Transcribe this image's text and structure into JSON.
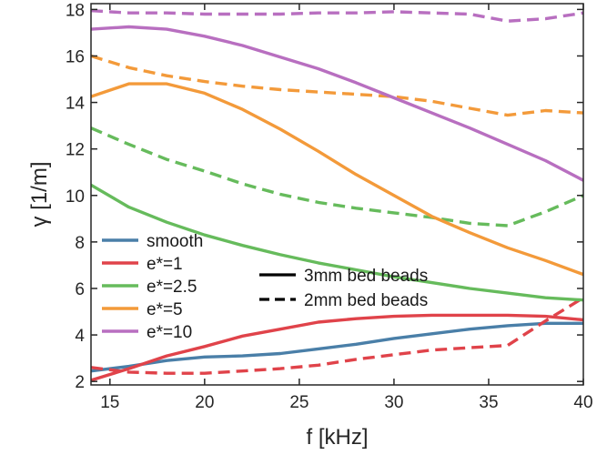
{
  "chart_data": {
    "type": "line",
    "xlabel": "f [kHz]",
    "ylabel": "γ [1/m]",
    "xlim": [
      14,
      40
    ],
    "ylim": [
      1.85,
      18.25
    ],
    "xticks": [
      15,
      20,
      25,
      30,
      35,
      40
    ],
    "yticks": [
      2,
      4,
      6,
      8,
      10,
      12,
      14,
      16,
      18
    ],
    "grid": false,
    "color_legend_position": "bottom-left",
    "style_legend_position": "bottom-center",
    "color_legend": [
      {
        "label": "smooth",
        "color": "#4a7fa8"
      },
      {
        "label": "e*=1",
        "color": "#e0434a"
      },
      {
        "label": "e*=2.5",
        "color": "#66bb5c"
      },
      {
        "label": "e*=5",
        "color": "#f39a3a"
      },
      {
        "label": "e*=10",
        "color": "#b86fc0"
      }
    ],
    "style_legend": [
      {
        "label": "3mm bed beads",
        "dash": "solid"
      },
      {
        "label": "2mm bed beads",
        "dash": "dashed"
      }
    ],
    "series": [
      {
        "group": "smooth",
        "style": "solid",
        "color": "#4a7fa8",
        "x": [
          14,
          16,
          18,
          20,
          22,
          24,
          26,
          28,
          30,
          32,
          34,
          36,
          38,
          40
        ],
        "y": [
          2.45,
          2.65,
          2.9,
          3.05,
          3.1,
          3.2,
          3.4,
          3.6,
          3.85,
          4.05,
          4.25,
          4.4,
          4.5,
          4.5
        ]
      },
      {
        "group": "e*=1",
        "style": "solid",
        "color": "#e0434a",
        "x": [
          14,
          16,
          18,
          20,
          22,
          24,
          26,
          28,
          30,
          32,
          34,
          36,
          38,
          40
        ],
        "y": [
          2.05,
          2.55,
          3.1,
          3.5,
          3.95,
          4.25,
          4.55,
          4.7,
          4.8,
          4.85,
          4.85,
          4.85,
          4.8,
          4.65
        ]
      },
      {
        "group": "e*=1",
        "style": "dashed",
        "color": "#e0434a",
        "x": [
          14,
          16,
          18,
          20,
          22,
          24,
          26,
          28,
          30,
          32,
          34,
          36,
          38,
          40
        ],
        "y": [
          2.6,
          2.4,
          2.35,
          2.35,
          2.45,
          2.55,
          2.7,
          2.95,
          3.15,
          3.35,
          3.45,
          3.55,
          4.6,
          5.6
        ]
      },
      {
        "group": "e*=2.5",
        "style": "solid",
        "color": "#66bb5c",
        "x": [
          14,
          16,
          18,
          20,
          22,
          24,
          26,
          28,
          30,
          32,
          34,
          36,
          38,
          40
        ],
        "y": [
          10.45,
          9.5,
          8.85,
          8.3,
          7.85,
          7.45,
          7.1,
          6.8,
          6.5,
          6.25,
          6.0,
          5.8,
          5.6,
          5.5
        ]
      },
      {
        "group": "e*=2.5",
        "style": "dashed",
        "color": "#66bb5c",
        "x": [
          14,
          16,
          18,
          20,
          22,
          24,
          26,
          28,
          30,
          32,
          34,
          36,
          38,
          40
        ],
        "y": [
          12.9,
          12.2,
          11.55,
          11.05,
          10.5,
          10.05,
          9.7,
          9.45,
          9.25,
          9.05,
          8.8,
          8.7,
          9.3,
          10.0
        ]
      },
      {
        "group": "e*=5",
        "style": "solid",
        "color": "#f39a3a",
        "x": [
          14,
          16,
          18,
          20,
          22,
          24,
          26,
          28,
          30,
          32,
          34,
          36,
          38,
          40
        ],
        "y": [
          14.25,
          14.8,
          14.8,
          14.4,
          13.7,
          12.85,
          11.9,
          10.9,
          10.0,
          9.1,
          8.4,
          7.75,
          7.2,
          6.6
        ]
      },
      {
        "group": "e*=5",
        "style": "dashed",
        "color": "#f39a3a",
        "x": [
          14,
          16,
          18,
          20,
          22,
          24,
          26,
          28,
          30,
          32,
          34,
          36,
          38,
          40
        ],
        "y": [
          16.0,
          15.5,
          15.15,
          14.9,
          14.7,
          14.55,
          14.45,
          14.35,
          14.25,
          14.05,
          13.75,
          13.45,
          13.65,
          13.55
        ]
      },
      {
        "group": "e*=10",
        "style": "solid",
        "color": "#b86fc0",
        "x": [
          14,
          16,
          18,
          20,
          22,
          24,
          26,
          28,
          30,
          32,
          34,
          36,
          38,
          40
        ],
        "y": [
          17.15,
          17.25,
          17.15,
          16.85,
          16.45,
          15.95,
          15.45,
          14.85,
          14.2,
          13.55,
          12.9,
          12.2,
          11.5,
          10.65
        ]
      },
      {
        "group": "e*=10",
        "style": "dashed",
        "color": "#b86fc0",
        "x": [
          14,
          16,
          18,
          20,
          22,
          24,
          26,
          28,
          30,
          32,
          34,
          36,
          38,
          40
        ],
        "y": [
          17.95,
          17.85,
          17.85,
          17.8,
          17.8,
          17.8,
          17.85,
          17.85,
          17.9,
          17.85,
          17.8,
          17.5,
          17.6,
          17.85
        ]
      }
    ]
  }
}
